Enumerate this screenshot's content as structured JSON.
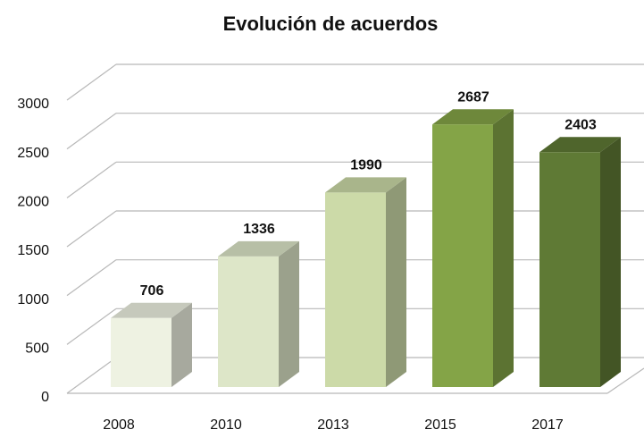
{
  "chart_data": {
    "type": "bar3d",
    "title": "Evolución de acuerdos",
    "categories": [
      "2008",
      "2010",
      "2013",
      "2015",
      "2017"
    ],
    "values": [
      706,
      1336,
      1990,
      2687,
      2403
    ],
    "colors": [
      "#eef2e2",
      "#dde6c8",
      "#ccdaa8",
      "#84a447",
      "#5f7a35"
    ],
    "ylim": [
      0,
      3000
    ],
    "yticks": [
      0,
      500,
      1000,
      1500,
      2000,
      2500,
      3000
    ],
    "grid": true
  }
}
